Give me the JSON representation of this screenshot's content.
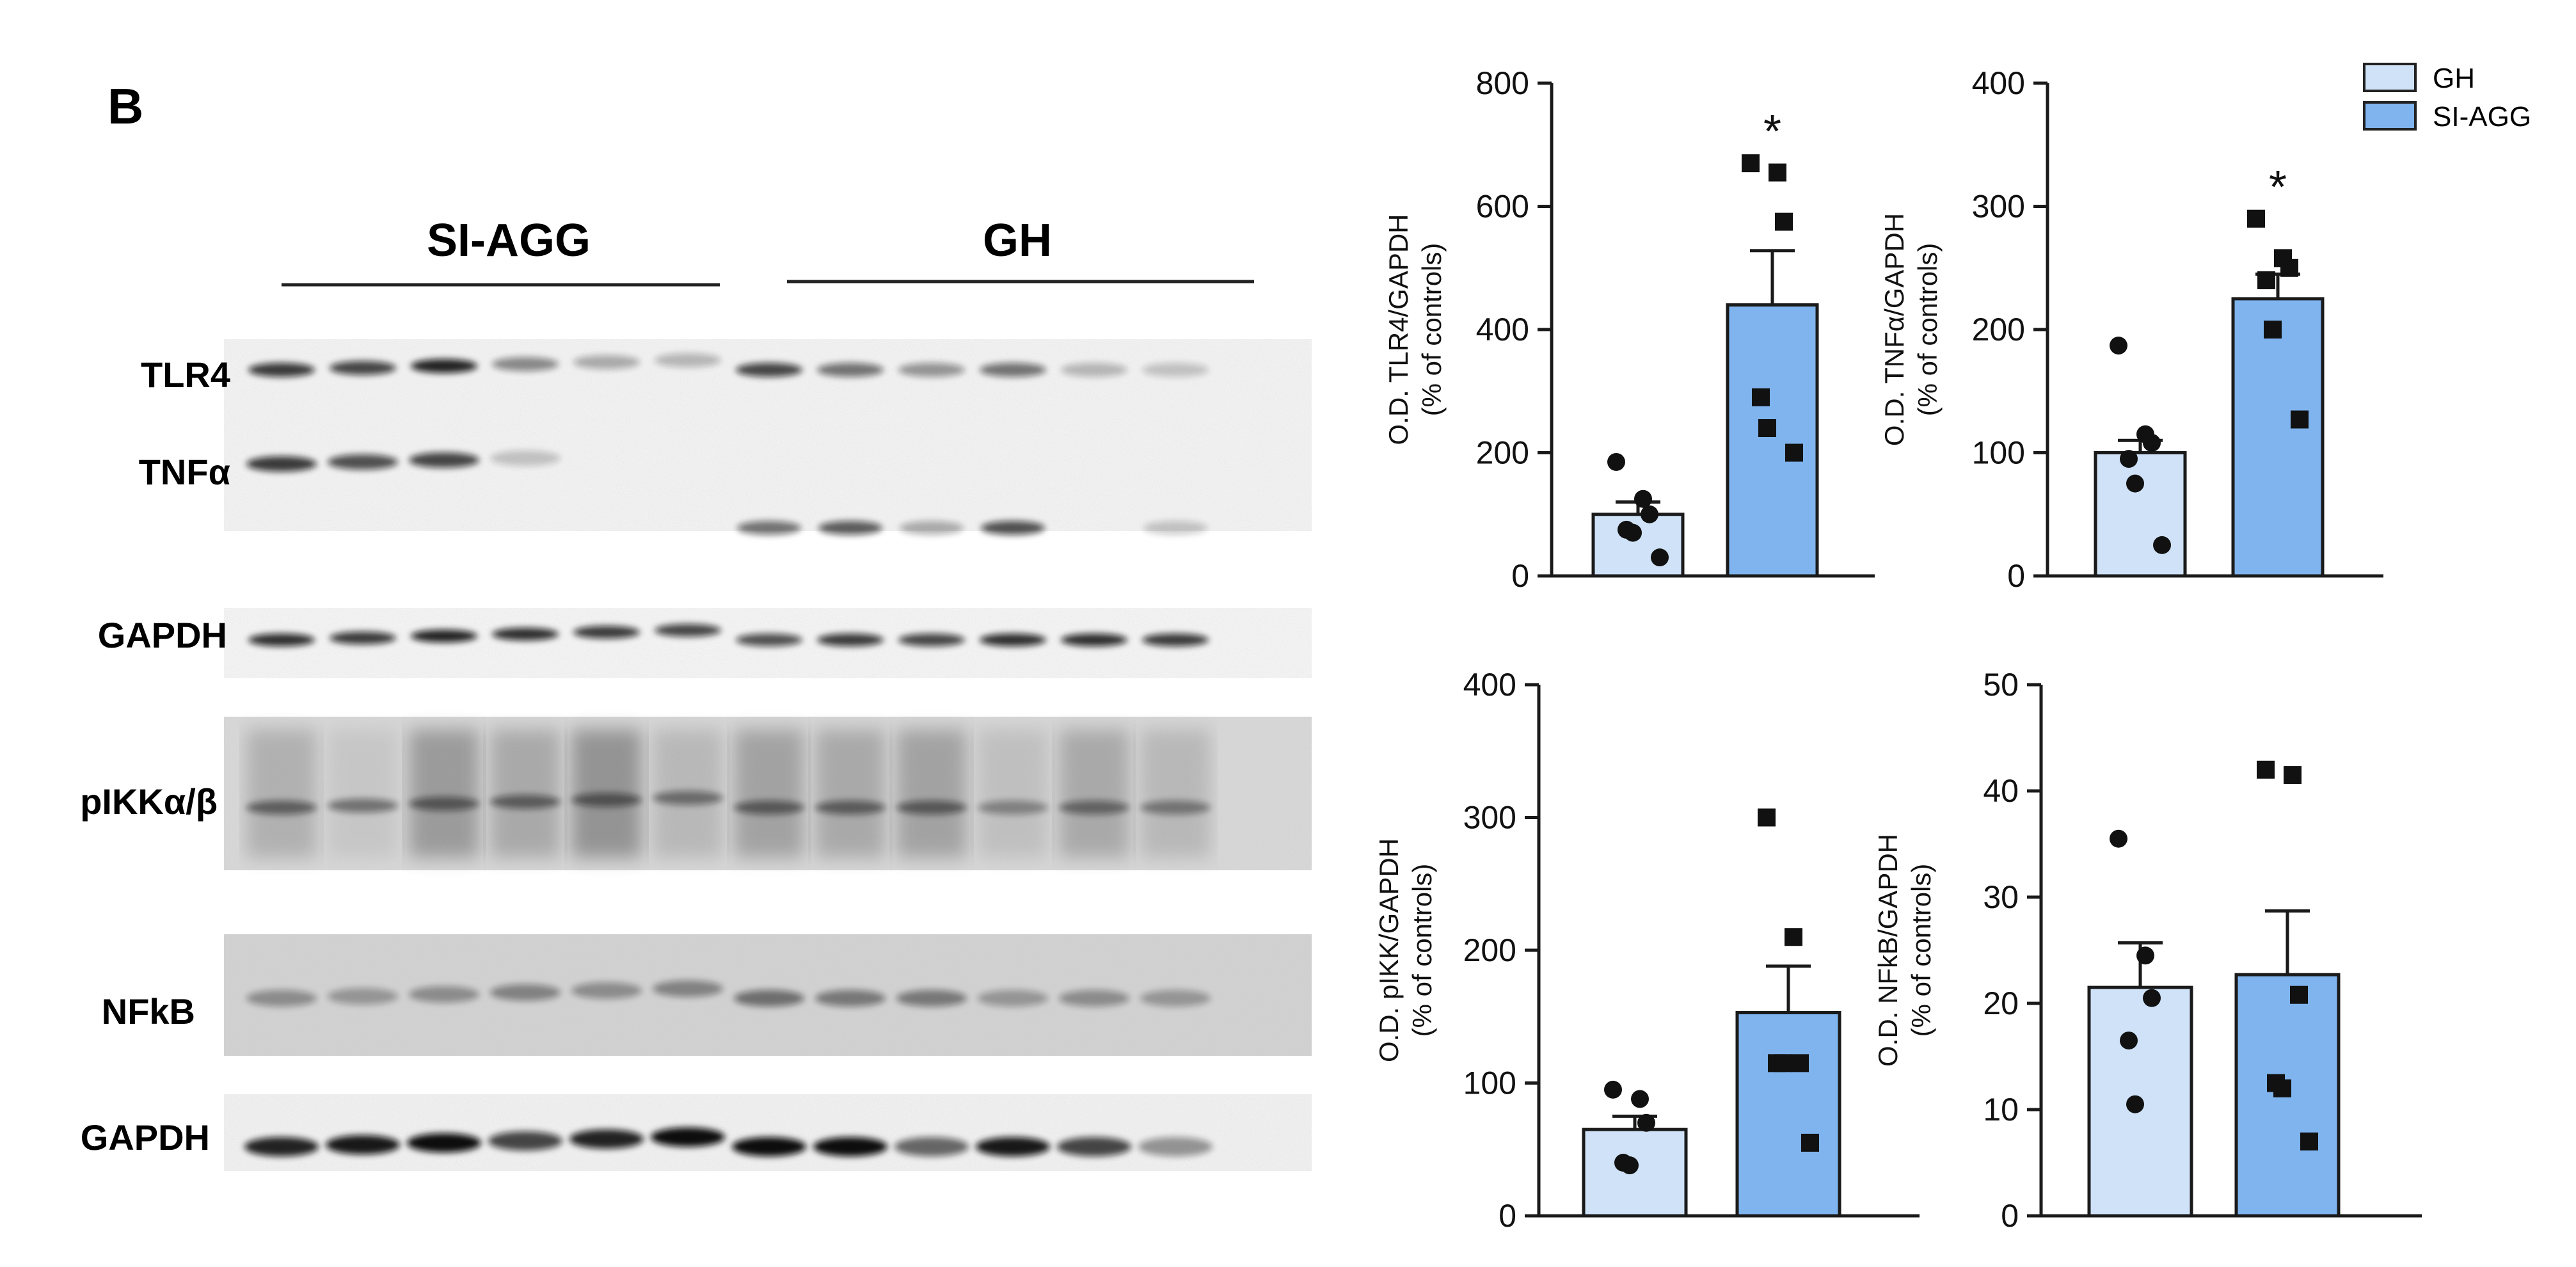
{
  "panel_letter": "B",
  "blot": {
    "group_labels": [
      "SI-AGG",
      "GH"
    ],
    "lane_count": 12,
    "bands": [
      {
        "name": "TLR4",
        "label": "TLR4"
      },
      {
        "name": "TNFα",
        "label": "TNFα"
      },
      {
        "name": "GAPDH",
        "label": "GAPDH"
      },
      {
        "name": "pIKKα/β",
        "label": "pIKKα/β"
      },
      {
        "name": "NFkB",
        "label": "NFkB"
      },
      {
        "name": "GAPDH",
        "label": "GAPDH"
      }
    ]
  },
  "legend": {
    "items": [
      {
        "label": "GH",
        "color": "#cfe2f7"
      },
      {
        "label": "SI-AGG",
        "color": "#7fb4ee"
      }
    ]
  },
  "colors": {
    "gh": "#cfe2f7",
    "siagg": "#7fb4ee",
    "axis": "#1a1a1a"
  },
  "chart_data": [
    {
      "type": "bar",
      "title": "",
      "categories": [
        "GH",
        "SI-AGG"
      ],
      "ylabel_line1": "O.D. TLR4/GAPDH",
      "ylabel_line2": "(% of controls)",
      "ylim": [
        0,
        800
      ],
      "yticks": [
        0,
        200,
        400,
        600,
        800
      ],
      "series": [
        {
          "name": "GH",
          "value": 100,
          "sem": 20,
          "points": [
            185,
            125,
            100,
            75,
            70,
            30
          ],
          "marker": "circle"
        },
        {
          "name": "SI-AGG",
          "value": 440,
          "sem": 88,
          "points": [
            670,
            655,
            575,
            290,
            240,
            200
          ],
          "marker": "square"
        }
      ],
      "significance": [
        "",
        "*"
      ]
    },
    {
      "type": "bar",
      "title": "",
      "categories": [
        "GH",
        "SI-AGG"
      ],
      "ylabel_line1": "O.D. TNFα/GAPDH",
      "ylabel_line2": "(% of controls)",
      "ylim": [
        0,
        400
      ],
      "yticks": [
        0,
        100,
        200,
        300,
        400
      ],
      "series": [
        {
          "name": "GH",
          "value": 100,
          "sem": 10,
          "points": [
            187,
            115,
            108,
            95,
            75,
            25
          ],
          "marker": "circle"
        },
        {
          "name": "SI-AGG",
          "value": 225,
          "sem": 20,
          "points": [
            290,
            258,
            250,
            240,
            200,
            127
          ],
          "marker": "square"
        }
      ],
      "significance": [
        "",
        "*"
      ]
    },
    {
      "type": "bar",
      "title": "",
      "categories": [
        "GH",
        "SI-AGG"
      ],
      "ylabel_line1": "O.D. pIKK/GAPDH",
      "ylabel_line2": "(% of controls)",
      "ylim": [
        0,
        400
      ],
      "yticks": [
        0,
        100,
        200,
        300,
        400
      ],
      "series": [
        {
          "name": "GH",
          "value": 65,
          "sem": 10,
          "points": [
            95,
            88,
            70,
            40,
            38
          ],
          "marker": "circle"
        },
        {
          "name": "SI-AGG",
          "value": 153,
          "sem": 35,
          "points": [
            300,
            210,
            115,
            115,
            115,
            55
          ],
          "marker": "square"
        }
      ],
      "significance": [
        "",
        ""
      ]
    },
    {
      "type": "bar",
      "title": "",
      "categories": [
        "GH",
        "SI-AGG"
      ],
      "ylabel_line1": "O.D. NFkB/GAPDH",
      "ylabel_line2": "(% of controls)",
      "ylim": [
        0,
        50
      ],
      "yticks": [
        0,
        10,
        20,
        30,
        40,
        50
      ],
      "series": [
        {
          "name": "GH",
          "value": 21.5,
          "sem": 4.2,
          "points": [
            35.5,
            24.5,
            20.5,
            16.5,
            10.5
          ],
          "marker": "circle"
        },
        {
          "name": "SI-AGG",
          "value": 22.7,
          "sem": 6.0,
          "points": [
            42,
            41.5,
            20.8,
            12.5,
            12.0,
            7.0
          ],
          "marker": "square"
        }
      ],
      "significance": [
        "",
        ""
      ]
    }
  ]
}
